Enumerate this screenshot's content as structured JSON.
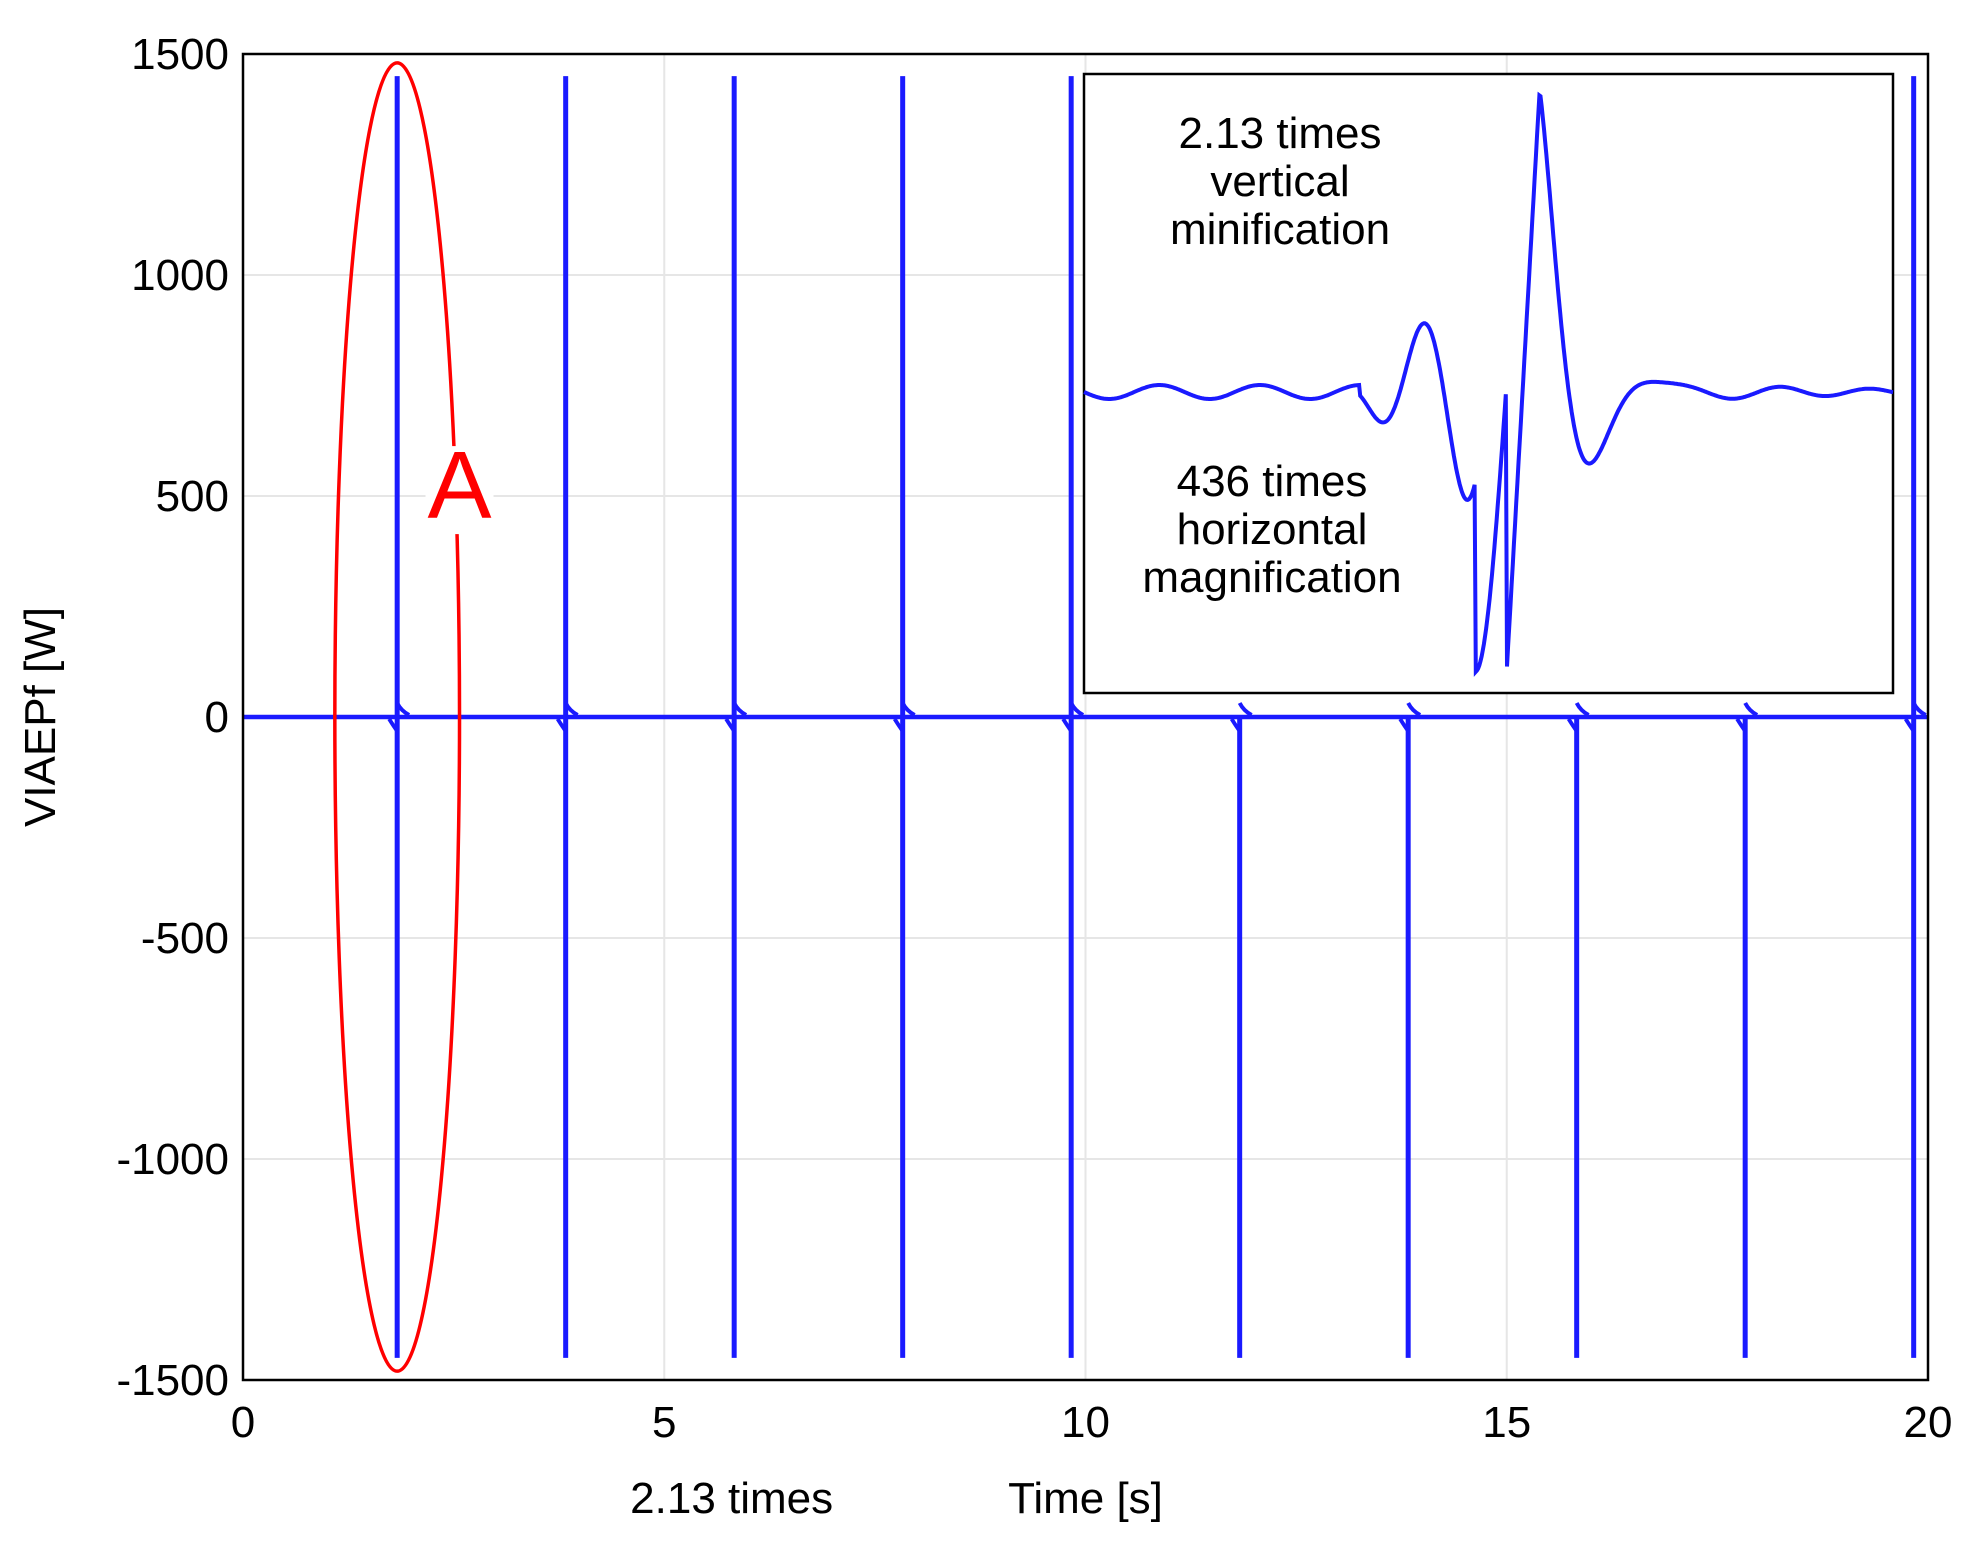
{
  "chart_data": {
    "type": "line",
    "xlabel": "Time [s]",
    "ylabel": "VIAEPf [W]",
    "xlim": [
      0,
      20
    ],
    "ylim": [
      -1500,
      1500
    ],
    "xticks": [
      "0",
      "5",
      "10",
      "15",
      "20"
    ],
    "yticks": [
      "1500",
      "1000",
      "500",
      "0",
      "-500",
      "-1000",
      "-1500"
    ],
    "grid": true,
    "series": [
      {
        "color": "#1a1aff",
        "baseline": 0,
        "spikes": [
          {
            "t": 1.83,
            "min": -1450,
            "max": 1450
          },
          {
            "t": 3.83,
            "min": -1450,
            "max": 1450
          },
          {
            "t": 5.83,
            "min": -1450,
            "max": 1450
          },
          {
            "t": 7.83,
            "min": -1450,
            "max": 1450
          },
          {
            "t": 9.83,
            "min": -1450,
            "max": 1450
          },
          {
            "t": 11.83,
            "min": -1450,
            "max": 0
          },
          {
            "t": 13.83,
            "min": -1450,
            "max": 0
          },
          {
            "t": 15.83,
            "min": -1450,
            "max": 0
          },
          {
            "t": 17.83,
            "min": -1450,
            "max": 0
          },
          {
            "t": 19.83,
            "min": -1450,
            "max": 1450
          }
        ]
      }
    ],
    "highlight": {
      "label": "A",
      "color": "#ff0000",
      "center": {
        "t": 1.83,
        "v": 0
      },
      "half_width": 0.74,
      "half_height": 1480
    },
    "inset": {
      "text_top": [
        "2.13 times",
        "vertical",
        "minification"
      ],
      "text_bottom": [
        "436 times",
        "horizontal",
        "magnification"
      ]
    },
    "bottom_note": "2.13 times"
  },
  "colors": {
    "line": "#1a1aff",
    "highlight": "#ff0000",
    "grid": "#e6e6e6",
    "axes": "#000000"
  }
}
